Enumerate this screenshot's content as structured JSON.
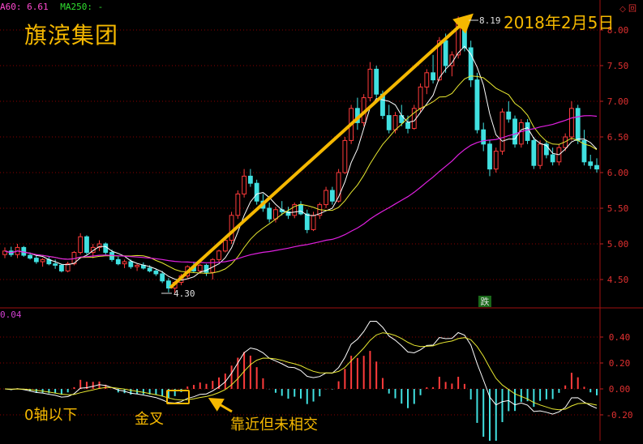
{
  "legend": {
    "ma60": "A60: 6.61",
    "ma250": "MA250: -"
  },
  "title": "旗滨集团",
  "date_label": "2018年2月5日",
  "annotations": {
    "below_zero": "0轴以下",
    "golden_cross": "金叉",
    "near_not_cross": "靠近但未相交"
  },
  "macd_header": "0.04",
  "top_icons": "◇ 回",
  "colors": {
    "up": "#ff3b3b",
    "down": "#40e0e0",
    "ma_short": "#ffffff",
    "ma_mid": "#e8e830",
    "ma_long": "#e020e0",
    "arrow": "#f5b800",
    "grid": "#8b0000"
  },
  "chart_data": [
    {
      "type": "candlestick",
      "price_axis": {
        "ticks": [
          "8.00",
          "7.50",
          "7.00",
          "6.50",
          "6.00",
          "5.50",
          "5.00",
          "4.50"
        ],
        "ylim": [
          4.2,
          8.2
        ]
      },
      "markers": {
        "low": "4.30",
        "high": "8.19",
        "limit_down": "跌"
      },
      "candles": [
        [
          4.85,
          4.95,
          4.8,
          4.9
        ],
        [
          4.9,
          4.96,
          4.82,
          4.85
        ],
        [
          4.85,
          5.0,
          4.8,
          4.95
        ],
        [
          4.95,
          4.97,
          4.82,
          4.84
        ],
        [
          4.84,
          4.88,
          4.78,
          4.8
        ],
        [
          4.8,
          4.84,
          4.72,
          4.75
        ],
        [
          4.75,
          4.8,
          4.68,
          4.78
        ],
        [
          4.78,
          4.82,
          4.7,
          4.72
        ],
        [
          4.72,
          4.78,
          4.65,
          4.7
        ],
        [
          4.7,
          4.72,
          4.6,
          4.62
        ],
        [
          4.62,
          4.75,
          4.6,
          4.72
        ],
        [
          4.72,
          4.9,
          4.7,
          4.88
        ],
        [
          4.88,
          5.15,
          4.85,
          5.1
        ],
        [
          5.1,
          5.12,
          4.85,
          4.88
        ],
        [
          4.88,
          5.0,
          4.8,
          4.95
        ],
        [
          4.95,
          5.05,
          4.9,
          5.0
        ],
        [
          5.0,
          5.02,
          4.85,
          4.88
        ],
        [
          4.88,
          4.92,
          4.75,
          4.78
        ],
        [
          4.78,
          4.82,
          4.7,
          4.72
        ],
        [
          4.72,
          4.78,
          4.66,
          4.75
        ],
        [
          4.75,
          4.78,
          4.65,
          4.68
        ],
        [
          4.68,
          4.72,
          4.62,
          4.7
        ],
        [
          4.7,
          4.74,
          4.64,
          4.66
        ],
        [
          4.66,
          4.7,
          4.6,
          4.62
        ],
        [
          4.62,
          4.65,
          4.55,
          4.58
        ],
        [
          4.58,
          4.62,
          4.45,
          4.48
        ],
        [
          4.48,
          4.52,
          4.32,
          4.38
        ],
        [
          4.38,
          4.48,
          4.3,
          4.46
        ],
        [
          4.46,
          4.58,
          4.42,
          4.55
        ],
        [
          4.55,
          4.7,
          4.52,
          4.68
        ],
        [
          4.68,
          4.75,
          4.6,
          4.62
        ],
        [
          4.62,
          4.72,
          4.58,
          4.7
        ],
        [
          4.7,
          4.72,
          4.55,
          4.6
        ],
        [
          4.6,
          4.8,
          4.5,
          4.78
        ],
        [
          4.78,
          4.92,
          4.74,
          4.9
        ],
        [
          4.9,
          5.1,
          4.88,
          5.05
        ],
        [
          5.05,
          5.45,
          5.0,
          5.4
        ],
        [
          5.4,
          5.75,
          5.35,
          5.7
        ],
        [
          5.7,
          6.05,
          5.65,
          5.95
        ],
        [
          5.95,
          6.05,
          5.8,
          5.85
        ],
        [
          5.85,
          5.9,
          5.55,
          5.6
        ],
        [
          5.6,
          5.7,
          5.45,
          5.5
        ],
        [
          5.5,
          5.58,
          5.3,
          5.35
        ],
        [
          5.35,
          5.52,
          5.3,
          5.48
        ],
        [
          5.48,
          5.6,
          5.4,
          5.45
        ],
        [
          5.45,
          5.52,
          5.35,
          5.4
        ],
        [
          5.4,
          5.58,
          5.36,
          5.55
        ],
        [
          5.55,
          5.6,
          5.4,
          5.42
        ],
        [
          5.42,
          5.48,
          5.15,
          5.2
        ],
        [
          5.2,
          5.45,
          5.18,
          5.4
        ],
        [
          5.4,
          5.58,
          5.35,
          5.55
        ],
        [
          5.55,
          5.8,
          5.5,
          5.75
        ],
        [
          5.75,
          5.8,
          5.55,
          5.6
        ],
        [
          5.6,
          6.05,
          5.58,
          6.0
        ],
        [
          6.0,
          6.5,
          5.98,
          6.45
        ],
        [
          6.45,
          6.95,
          6.4,
          6.9
        ],
        [
          6.9,
          7.05,
          6.6,
          6.7
        ],
        [
          6.7,
          7.1,
          6.65,
          7.05
        ],
        [
          7.05,
          7.55,
          7.0,
          7.45
        ],
        [
          7.45,
          7.5,
          7.05,
          7.1
        ],
        [
          7.1,
          7.15,
          6.75,
          6.8
        ],
        [
          6.8,
          6.95,
          6.55,
          6.6
        ],
        [
          6.6,
          6.85,
          6.55,
          6.8
        ],
        [
          6.8,
          6.95,
          6.65,
          6.7
        ],
        [
          6.7,
          6.8,
          6.55,
          6.62
        ],
        [
          6.62,
          6.95,
          6.6,
          6.9
        ],
        [
          6.9,
          7.25,
          6.85,
          7.2
        ],
        [
          7.2,
          7.45,
          7.1,
          7.4
        ],
        [
          7.4,
          7.65,
          7.25,
          7.3
        ],
        [
          7.3,
          7.9,
          7.28,
          7.85
        ],
        [
          7.85,
          7.95,
          7.4,
          7.5
        ],
        [
          7.5,
          7.7,
          7.35,
          7.65
        ],
        [
          7.65,
          8.19,
          7.6,
          8.1
        ],
        [
          8.1,
          8.15,
          7.7,
          7.75
        ],
        [
          7.75,
          7.85,
          7.2,
          7.3
        ],
        [
          7.3,
          7.4,
          6.55,
          6.6
        ],
        [
          6.6,
          6.7,
          6.3,
          6.4
        ],
        [
          6.4,
          6.45,
          5.95,
          6.05
        ],
        [
          6.05,
          6.35,
          6.0,
          6.3
        ],
        [
          6.3,
          6.9,
          6.25,
          6.85
        ],
        [
          6.85,
          7.0,
          6.7,
          6.75
        ],
        [
          6.75,
          6.8,
          6.35,
          6.4
        ],
        [
          6.4,
          6.75,
          6.35,
          6.7
        ],
        [
          6.7,
          6.75,
          6.4,
          6.45
        ],
        [
          6.45,
          6.5,
          6.05,
          6.1
        ],
        [
          6.1,
          6.45,
          6.05,
          6.4
        ],
        [
          6.4,
          6.45,
          6.2,
          6.25
        ],
        [
          6.25,
          6.35,
          6.1,
          6.15
        ],
        [
          6.15,
          6.4,
          6.1,
          6.35
        ],
        [
          6.35,
          6.55,
          6.3,
          6.5
        ],
        [
          6.5,
          7.0,
          6.45,
          6.9
        ],
        [
          6.9,
          6.95,
          6.4,
          6.45
        ],
        [
          6.45,
          6.6,
          6.1,
          6.15
        ],
        [
          6.15,
          6.25,
          6.05,
          6.1
        ],
        [
          6.1,
          6.2,
          6.0,
          6.05
        ]
      ]
    },
    {
      "type": "macd",
      "axis": {
        "ticks": [
          "0.40",
          "0.20",
          "0.00",
          "-0.20"
        ],
        "ylim": [
          -0.33,
          0.5
        ]
      },
      "series_colors": {
        "dif": "#ffffff",
        "dea": "#e8e830"
      }
    }
  ]
}
